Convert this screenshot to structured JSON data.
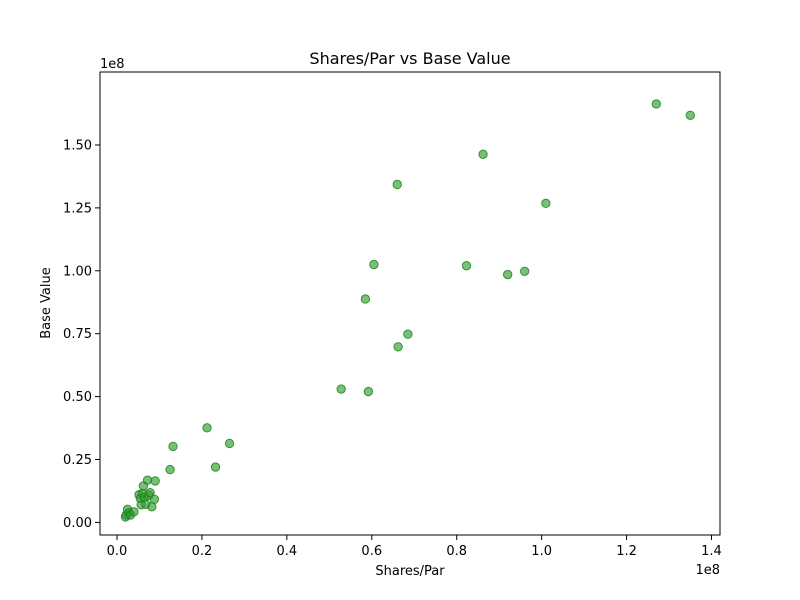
{
  "chart_data": {
    "type": "scatter",
    "title": "Shares/Par vs Base Value",
    "xlabel": "Shares/Par",
    "ylabel": "Base Value",
    "x_offset_label": "1e8",
    "y_offset_label": "1e8",
    "xlim": [
      -0.04,
      1.42
    ],
    "ylim": [
      -0.05,
      1.79
    ],
    "x_ticks": [
      0.0,
      0.2,
      0.4,
      0.6,
      0.8,
      1.0,
      1.2,
      1.4
    ],
    "x_tick_labels": [
      "0.0",
      "0.2",
      "0.4",
      "0.6",
      "0.8",
      "1.0",
      "1.2",
      "1.4"
    ],
    "y_ticks": [
      0.0,
      0.25,
      0.5,
      0.75,
      1.0,
      1.25,
      1.5
    ],
    "y_tick_labels": [
      "0.00",
      "0.25",
      "0.50",
      "0.75",
      "1.00",
      "1.25",
      "1.50"
    ],
    "grid": false,
    "marker_color": "#2ca02c",
    "marker_edge_color": "#1a7a1a",
    "marker_alpha": 0.65,
    "points": [
      {
        "x": 0.02,
        "y": 0.022
      },
      {
        "x": 0.022,
        "y": 0.03
      },
      {
        "x": 0.025,
        "y": 0.052
      },
      {
        "x": 0.028,
        "y": 0.038
      },
      {
        "x": 0.032,
        "y": 0.03
      },
      {
        "x": 0.04,
        "y": 0.042
      },
      {
        "x": 0.052,
        "y": 0.11
      },
      {
        "x": 0.055,
        "y": 0.095
      },
      {
        "x": 0.057,
        "y": 0.07
      },
      {
        "x": 0.06,
        "y": 0.115
      },
      {
        "x": 0.062,
        "y": 0.145
      },
      {
        "x": 0.065,
        "y": 0.1
      },
      {
        "x": 0.068,
        "y": 0.072
      },
      {
        "x": 0.072,
        "y": 0.168
      },
      {
        "x": 0.075,
        "y": 0.108
      },
      {
        "x": 0.078,
        "y": 0.118
      },
      {
        "x": 0.082,
        "y": 0.062
      },
      {
        "x": 0.088,
        "y": 0.092
      },
      {
        "x": 0.09,
        "y": 0.165
      },
      {
        "x": 0.125,
        "y": 0.21
      },
      {
        "x": 0.132,
        "y": 0.302
      },
      {
        "x": 0.212,
        "y": 0.376
      },
      {
        "x": 0.232,
        "y": 0.22
      },
      {
        "x": 0.265,
        "y": 0.314
      },
      {
        "x": 0.528,
        "y": 0.53
      },
      {
        "x": 0.585,
        "y": 0.888
      },
      {
        "x": 0.592,
        "y": 0.52
      },
      {
        "x": 0.605,
        "y": 1.025
      },
      {
        "x": 0.66,
        "y": 1.343
      },
      {
        "x": 0.662,
        "y": 0.698
      },
      {
        "x": 0.685,
        "y": 0.748
      },
      {
        "x": 0.823,
        "y": 1.02
      },
      {
        "x": 0.862,
        "y": 1.463
      },
      {
        "x": 0.92,
        "y": 0.985
      },
      {
        "x": 0.96,
        "y": 0.998
      },
      {
        "x": 1.01,
        "y": 1.268
      },
      {
        "x": 1.27,
        "y": 1.663
      },
      {
        "x": 1.35,
        "y": 1.618
      }
    ]
  }
}
